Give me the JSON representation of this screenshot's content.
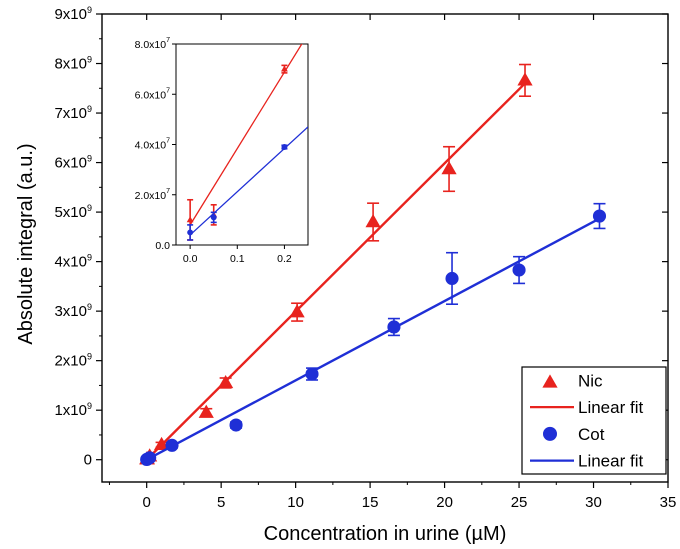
{
  "chart_data": {
    "type": "scatter",
    "xlabel": "Concentration in urine (µM)",
    "ylabel": "Absolute integral (a.u.)",
    "xlim": [
      -3,
      35
    ],
    "ylim": [
      -450000000,
      9000000000
    ],
    "x_ticks": [
      0,
      5,
      10,
      15,
      20,
      25,
      30,
      35
    ],
    "x_tick_labels": [
      "0",
      "5",
      "10",
      "15",
      "20",
      "25",
      "30",
      "35"
    ],
    "y_ticks": [
      0,
      1000000000,
      2000000000,
      3000000000,
      4000000000,
      5000000000,
      6000000000,
      7000000000,
      8000000000,
      9000000000
    ],
    "y_tick_labels": [
      {
        "base": "0",
        "exp": ""
      },
      {
        "base": "1x10",
        "exp": "9"
      },
      {
        "base": "2x10",
        "exp": "9"
      },
      {
        "base": "3x10",
        "exp": "9"
      },
      {
        "base": "4x10",
        "exp": "9"
      },
      {
        "base": "5x10",
        "exp": "9"
      },
      {
        "base": "6x10",
        "exp": "9"
      },
      {
        "base": "7x10",
        "exp": "9"
      },
      {
        "base": "8x10",
        "exp": "9"
      },
      {
        "base": "9x10",
        "exp": "9"
      }
    ],
    "legend_position": "bottom-right",
    "legend": [
      {
        "label": "Nic",
        "kind": "triangle",
        "color": "#e8231e"
      },
      {
        "label": "Linear fit",
        "kind": "line",
        "color": "#e8231e"
      },
      {
        "label": "Cot",
        "kind": "circle",
        "color": "#1f2fd6"
      },
      {
        "label": "Linear fit",
        "kind": "line",
        "color": "#1f2fd6"
      }
    ],
    "series": [
      {
        "name": "Nic",
        "marker": "triangle",
        "color": "#e8231e",
        "x": [
          0,
          0.05,
          0.2,
          1.0,
          4.0,
          5.3,
          10.1,
          15.2,
          20.3,
          25.4
        ],
        "y": [
          10000000,
          12000000,
          70000000,
          300000000,
          950000000,
          1550000000,
          2980000000,
          4800000000,
          5870000000,
          7660000000
        ],
        "yerr": [
          8000000,
          4000000,
          1500000,
          50000000,
          80000000,
          100000000,
          180000000,
          380000000,
          450000000,
          320000000
        ],
        "fit": {
          "x": [
            0,
            25.4
          ],
          "y": [
            0,
            7600000000
          ]
        }
      },
      {
        "name": "Cot",
        "marker": "circle",
        "color": "#1f2fd6",
        "x": [
          0,
          0.05,
          0.2,
          1.7,
          6.0,
          11.1,
          16.6,
          20.5,
          25.0,
          30.4
        ],
        "y": [
          5000000,
          11000000,
          39000000,
          290000000,
          700000000,
          1730000000,
          2680000000,
          3660000000,
          3830000000,
          4920000000
        ],
        "yerr": [
          3000000,
          2000000,
          700000,
          50000000,
          60000000,
          120000000,
          170000000,
          520000000,
          270000000,
          250000000
        ],
        "fit": {
          "x": [
            0,
            30.4
          ],
          "y": [
            0,
            4870000000
          ]
        }
      }
    ],
    "inset": {
      "xlim": [
        -0.03,
        0.25
      ],
      "ylim": [
        0,
        80000000
      ],
      "x_ticks": [
        0,
        0.1,
        0.2
      ],
      "x_tick_labels": [
        "0.0",
        "0.1",
        "0.2"
      ],
      "y_ticks": [
        0,
        20000000,
        40000000,
        60000000,
        80000000
      ],
      "y_tick_labels": [
        {
          "base": "0.0",
          "exp": ""
        },
        {
          "base": "2.0x10",
          "exp": "7"
        },
        {
          "base": "4.0x10",
          "exp": "7"
        },
        {
          "base": "6.0x10",
          "exp": "7"
        },
        {
          "base": "8.0x10",
          "exp": "7"
        }
      ]
    }
  }
}
